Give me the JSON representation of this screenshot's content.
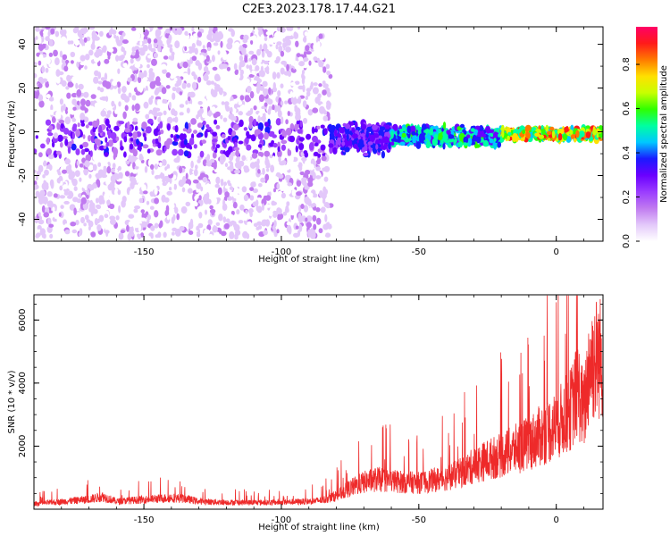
{
  "figure": {
    "title": "C2E3.2023.178.17.44.G21"
  },
  "colors": {
    "snr_line": "#ee2a2a",
    "colormap": [
      "#ffffff",
      "#e3c8fa",
      "#c07af0",
      "#9a3cff",
      "#6a00ff",
      "#1a1aff",
      "#00c8ff",
      "#00ffa0",
      "#30ff00",
      "#c8ff00",
      "#ffe000",
      "#ff7a00",
      "#ff1a1a",
      "#ff0066"
    ]
  },
  "chart_data": [
    {
      "type": "heatmap",
      "title": "",
      "xlabel": "Height of straight line (km)",
      "ylabel": "Frequency (Hz)",
      "xlim": [
        -190,
        17
      ],
      "ylim": [
        -50,
        48
      ],
      "xticks": [
        -150,
        -100,
        -50,
        0
      ],
      "yticks": [
        -40,
        -20,
        0,
        20,
        40
      ],
      "grid": false,
      "colorbar": {
        "label": "Normalized spectral amplitude",
        "range": [
          0,
          0.97
        ],
        "ticks": [
          0.0,
          0.2,
          0.4,
          0.6,
          0.8
        ]
      },
      "description_series": [
        {
          "x_range": [
            -190,
            -82
          ],
          "freq_spread_hz": 48,
          "center_freq_hz": -3,
          "amplitude": 0.12
        },
        {
          "x_range": [
            -82,
            -60
          ],
          "freq_spread_hz": 8,
          "center_freq_hz": -3,
          "amplitude": 0.4
        },
        {
          "x_range": [
            -60,
            -20
          ],
          "freq_spread_hz": 5,
          "center_freq_hz": -2,
          "amplitude": 0.55
        },
        {
          "x_range": [
            -20,
            17
          ],
          "freq_spread_hz": 3,
          "center_freq_hz": -1,
          "amplitude": 0.85
        }
      ]
    },
    {
      "type": "line",
      "title": "",
      "xlabel": "Height of straight line (km)",
      "ylabel": "SNR (10 * v/v)",
      "xlim": [
        -190,
        17
      ],
      "ylim": [
        0,
        6800
      ],
      "xticks": [
        -150,
        -100,
        -50,
        0
      ],
      "yticks": [
        2000,
        4000,
        6000
      ],
      "grid": false,
      "series": [
        {
          "x": [
            -190,
            -180,
            -170,
            -165,
            -160,
            -150,
            -140,
            -135,
            -130,
            -120,
            -110,
            -100,
            -90,
            -85,
            -80,
            -75,
            -70,
            -65,
            -60,
            -55,
            -50,
            -45,
            -40,
            -35,
            -30,
            -25,
            -20,
            -15,
            -10,
            -5,
            0,
            5,
            8,
            10,
            12,
            15,
            17
          ],
          "values": [
            180,
            250,
            330,
            420,
            260,
            320,
            380,
            350,
            260,
            230,
            220,
            230,
            260,
            300,
            450,
            700,
            900,
            1000,
            950,
            900,
            880,
            960,
            1050,
            1200,
            1450,
            1650,
            1800,
            2000,
            2200,
            2500,
            2800,
            3300,
            4000,
            3200,
            4800,
            5100,
            5000
          ]
        }
      ]
    }
  ]
}
